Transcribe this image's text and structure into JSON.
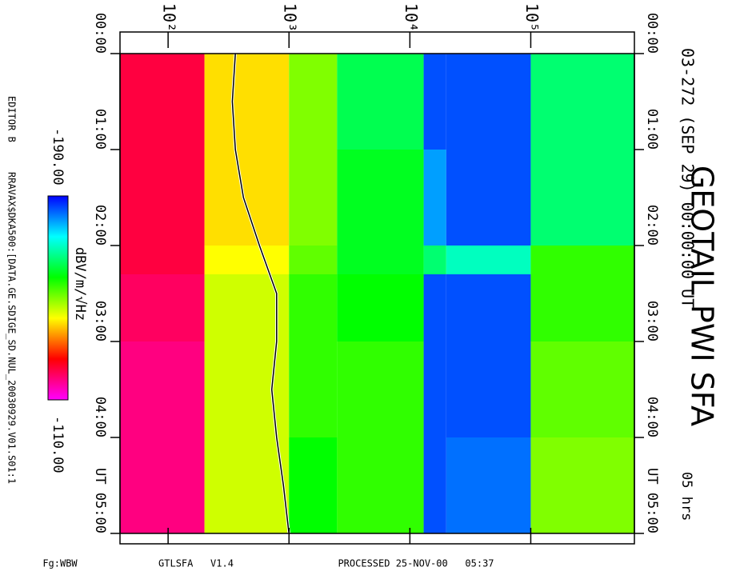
{
  "chart_data": {
    "type": "spectrogram",
    "title": "GEOTAIL PWI SFA",
    "subtitle": "03-272 (SEP 29) 00:00:00 UT",
    "duration": "05 hrs",
    "editor": "EDITOR B",
    "source_file": "RRAVAX$DKA500:[DATA.GE.SDIGE_SD.NUL_20030929.V01.S01:1",
    "footer_left": "Fg:WBW",
    "footer_mid": "GTLSFA   V1.4",
    "footer_right": "PROCESSED 25-NOV-00   05:37",
    "colorbar": {
      "label": "dBV/m/√Hz",
      "lim": [
        -190,
        -110
      ],
      "min_label": "-190.00",
      "max_label": "-110.00",
      "colors": [
        "#0000ff",
        "#00ffff",
        "#00ff00",
        "#ffff00",
        "#ff0000",
        "#ff00ff"
      ]
    },
    "log_x": true,
    "xlim": [
      40,
      720000
    ],
    "xticks": [
      {
        "value": 100,
        "label": "10²"
      },
      {
        "value": 1000,
        "label": "10³"
      },
      {
        "value": 10000,
        "label": "10⁴"
      },
      {
        "value": 100000,
        "label": "10⁵"
      }
    ],
    "ylim": [
      0,
      5
    ],
    "yticks": [
      {
        "value": 0,
        "label": "00:00"
      },
      {
        "value": 1,
        "label": "01:00"
      },
      {
        "value": 2,
        "label": "02:00"
      },
      {
        "value": 3,
        "label": "03:00"
      },
      {
        "value": 4,
        "label": "04:00"
      },
      {
        "value": 5,
        "label": "UT 05:00"
      }
    ],
    "freq_bins": [
      40,
      200,
      1000,
      2500,
      13000,
      20000,
      100000,
      720000
    ],
    "time_bins": [
      0,
      1,
      2,
      2.3,
      3,
      4,
      5
    ],
    "values": [
      [
        -122,
        -140,
        -150,
        -163,
        -185,
        -185,
        -165
      ],
      [
        -122,
        -140,
        -150,
        -160,
        -180,
        -185,
        -165
      ],
      [
        -122,
        -142,
        -152,
        -160,
        -165,
        -170,
        -155
      ],
      [
        -120,
        -145,
        -155,
        -158,
        -185,
        -185,
        -155
      ],
      [
        -118,
        -145,
        -155,
        -155,
        -185,
        -185,
        -152
      ],
      [
        -118,
        -145,
        -158,
        -155,
        -185,
        -183,
        -150
      ]
    ],
    "trace": {
      "time": [
        0,
        0.5,
        1,
        1.5,
        2,
        2.5,
        3,
        3.5,
        4,
        4.5,
        5
      ],
      "freq": [
        360,
        340,
        360,
        420,
        570,
        790,
        790,
        720,
        790,
        900,
        1000
      ]
    }
  }
}
